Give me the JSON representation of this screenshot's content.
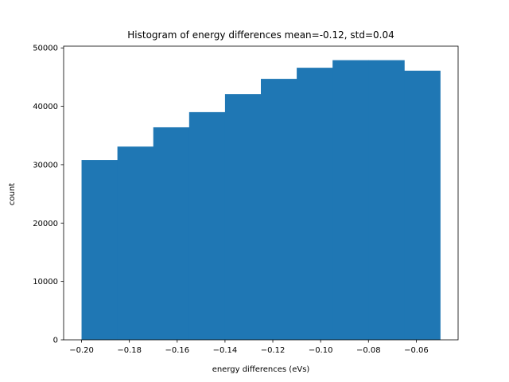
{
  "chart_data": {
    "type": "bar",
    "title": "Histogram of energy differences mean=-0.12, std=0.04",
    "xlabel": "energy differences (eVs)",
    "ylabel": "count",
    "bin_edges": [
      -0.2,
      -0.185,
      -0.17,
      -0.155,
      -0.14,
      -0.125,
      -0.11,
      -0.095,
      -0.08,
      -0.065,
      -0.05
    ],
    "values": [
      30800,
      33100,
      36400,
      39000,
      42100,
      44700,
      46600,
      47900,
      47900,
      46100
    ],
    "xlim": [
      -0.2075,
      -0.0425
    ],
    "ylim": [
      0,
      50300
    ],
    "xticks": [
      -0.2,
      -0.18,
      -0.16,
      -0.14,
      -0.12,
      -0.1,
      -0.08,
      -0.06
    ],
    "xtick_labels": [
      "−0.20",
      "−0.18",
      "−0.16",
      "−0.14",
      "−0.12",
      "−0.10",
      "−0.08",
      "−0.06"
    ],
    "yticks": [
      0,
      10000,
      20000,
      30000,
      40000,
      50000
    ],
    "ytick_labels": [
      "0",
      "10000",
      "20000",
      "30000",
      "40000",
      "50000"
    ],
    "bar_color": "#1f77b4",
    "grid": false,
    "legend": "none"
  }
}
